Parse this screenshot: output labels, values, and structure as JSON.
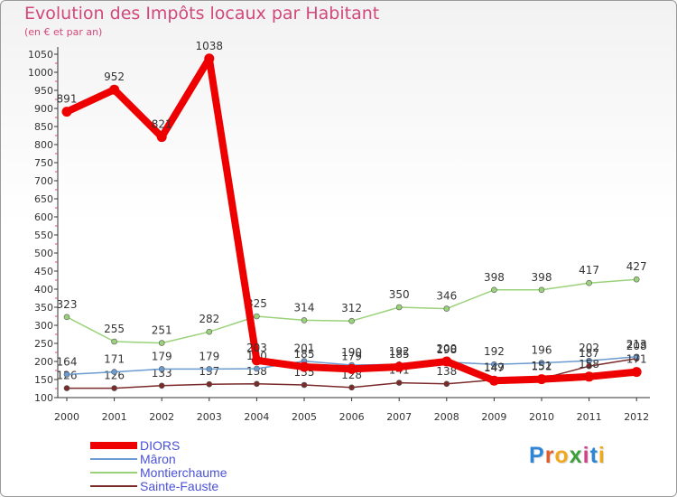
{
  "header": {
    "title": "Evolution des Impôts locaux par Habitant",
    "subtitle": "(en € et par an)"
  },
  "logo": {
    "text": "Proxiti",
    "colors": [
      "#2e86d6",
      "#e35a2b",
      "#f2a81d",
      "#3c9f3c",
      "#d23f8a",
      "#2e86d6",
      "#f2a81d"
    ]
  },
  "chart_data": {
    "type": "line",
    "x": [
      "2000",
      "2001",
      "2002",
      "2003",
      "2004",
      "2005",
      "2006",
      "2007",
      "2008",
      "2009",
      "2010",
      "2011",
      "2012"
    ],
    "ylim": [
      100,
      1050
    ],
    "yticks": [
      100,
      150,
      200,
      250,
      300,
      350,
      400,
      450,
      500,
      550,
      600,
      650,
      700,
      750,
      800,
      850,
      900,
      950,
      1000,
      1050
    ],
    "grid": false,
    "legend_position": "bottom-left",
    "series": [
      {
        "name": "Sainte-Fauste",
        "color": "#7b2a2a",
        "width": 1.5,
        "marker": 4,
        "values": [
          126,
          126,
          133,
          137,
          138,
          135,
          128,
          141,
          138,
          149,
          152,
          187,
          208
        ]
      },
      {
        "name": "Mâron",
        "color": "#6a9bd1",
        "width": 1.5,
        "marker": 4,
        "values": [
          164,
          171,
          179,
          179,
          180,
          201,
          190,
          192,
          198,
          192,
          196,
          202,
          213
        ]
      },
      {
        "name": "Montierchaume",
        "color": "#9ad27a",
        "width": 1.5,
        "marker": 4,
        "values": [
          323,
          255,
          251,
          282,
          325,
          314,
          312,
          350,
          346,
          398,
          398,
          417,
          427
        ]
      },
      {
        "name": "DIORS",
        "color": "#ee0000",
        "width": 8,
        "marker": 7,
        "values": [
          891,
          952,
          821,
          1038,
          203,
          185,
          179,
          185,
          200,
          147,
          151,
          158,
          171
        ]
      }
    ],
    "legend": [
      "DIORS",
      "Mâron",
      "Montierchaume",
      "Sainte-Fauste"
    ]
  }
}
